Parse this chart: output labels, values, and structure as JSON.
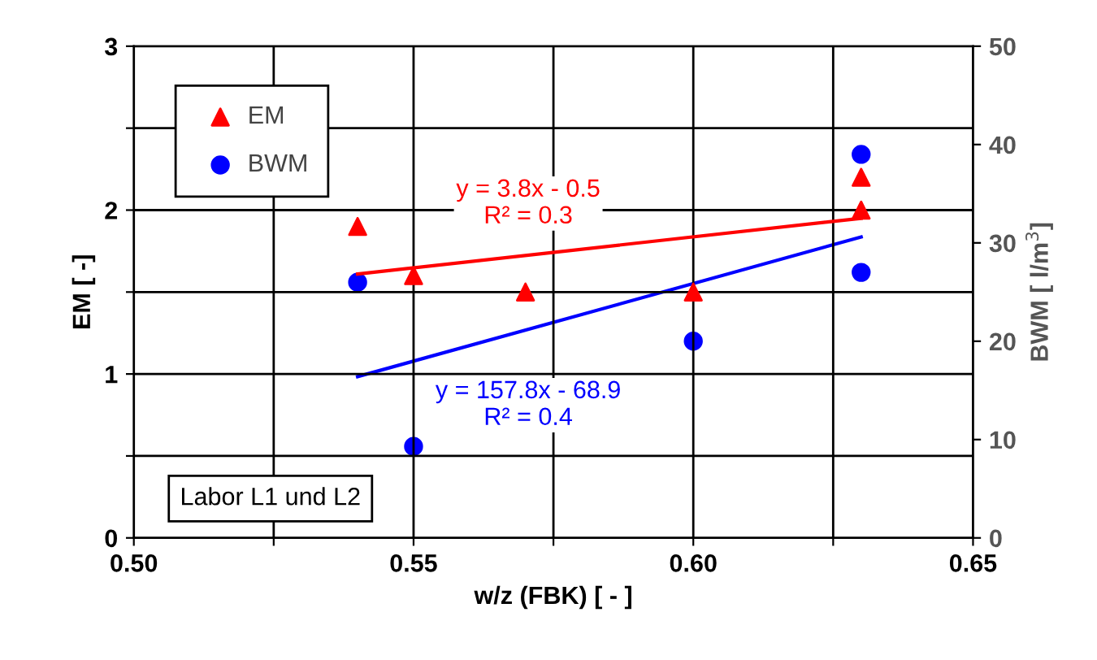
{
  "chart_data": {
    "type": "scatter",
    "xlabel": "w/z (FBK) [ - ]",
    "ylabel": "EM [ -]",
    "y2label": "BWM [ l/m$^{3}$]",
    "xlim": [
      0.5,
      0.65
    ],
    "xticks": [
      {
        "value": 0.5,
        "label": "0.50"
      },
      {
        "value": 0.525,
        "label": null
      },
      {
        "value": 0.55,
        "label": "0.55"
      },
      {
        "value": 0.575,
        "label": null
      },
      {
        "value": 0.6,
        "label": "0.60"
      },
      {
        "value": 0.625,
        "label": null
      },
      {
        "value": 0.65,
        "label": "0.65"
      }
    ],
    "ylim": [
      0,
      3
    ],
    "yticks": [
      0,
      {
        "value": 0.5,
        "label": null
      },
      1,
      {
        "value": 1.5,
        "label": null
      },
      2,
      {
        "value": 2.5,
        "label": null
      },
      3
    ],
    "y2lim": [
      0,
      50
    ],
    "y2ticks": [
      0,
      10,
      20,
      30,
      40,
      50
    ],
    "grid": true,
    "legend": "top left",
    "series": [
      {
        "name": "EM",
        "color": "#ff0000",
        "marker": "triangle",
        "x": [
          0.54,
          0.55,
          0.57,
          0.6,
          0.63,
          0.63
        ],
        "values": [
          1.9,
          1.6,
          1.5,
          1.5,
          2.0,
          2.2
        ]
      },
      {
        "name": "BWM",
        "color": "#0000ff",
        "marker": "circle",
        "axis": "y2",
        "x": [
          0.54,
          0.55,
          0.6,
          0.63,
          0.63
        ],
        "values": [
          26,
          9.3,
          20,
          39,
          27
        ]
      },
      {
        "type": "line",
        "color": "#ff0000",
        "x": [
          0.54,
          0.63
        ],
        "values": [
          1.61,
          1.95
        ]
      },
      {
        "type": "line",
        "color": "#0000ff",
        "axis": "y2",
        "x": [
          0.54,
          0.63
        ],
        "values": [
          16.4,
          30.6
        ]
      }
    ],
    "annotations": [
      "y = 3.8x - 0.5\nR² = 0.3",
      "y = 157.8x - 68.9\nR² = 0.4",
      "Labor L1 und L2"
    ]
  }
}
